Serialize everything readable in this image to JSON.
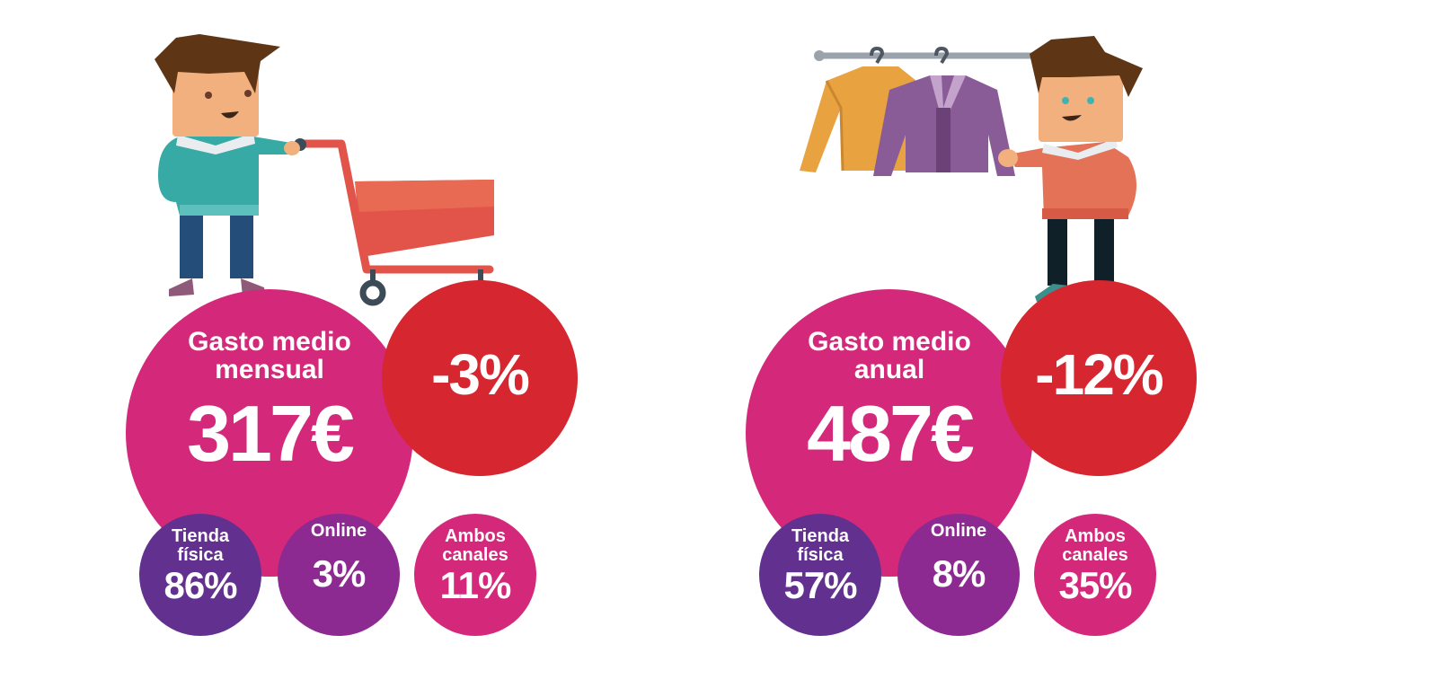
{
  "colors": {
    "main_circle": "#d4297a",
    "change_circle": "#d6262f",
    "tienda_circle": "#62308f",
    "online_circle": "#8c2a91",
    "ambos_circle": "#d4297a"
  },
  "panels": [
    {
      "illustration": "man-with-shopping-cart",
      "main_label_1": "Gasto medio",
      "main_label_2": "mensual",
      "main_value": "317€",
      "change": "-3%",
      "channels": [
        {
          "label_1": "Tienda",
          "label_2": "física",
          "value": "86%"
        },
        {
          "label_1": "Online",
          "label_2": "",
          "value": "3%"
        },
        {
          "label_1": "Ambos",
          "label_2": "canales",
          "value": "11%"
        }
      ]
    },
    {
      "illustration": "man-with-clothes-rack",
      "main_label_1": "Gasto medio",
      "main_label_2": "anual",
      "main_value": "487€",
      "change": "-12%",
      "channels": [
        {
          "label_1": "Tienda",
          "label_2": "física",
          "value": "57%"
        },
        {
          "label_1": "Online",
          "label_2": "",
          "value": "8%"
        },
        {
          "label_1": "Ambos",
          "label_2": "canales",
          "value": "35%"
        }
      ]
    }
  ]
}
